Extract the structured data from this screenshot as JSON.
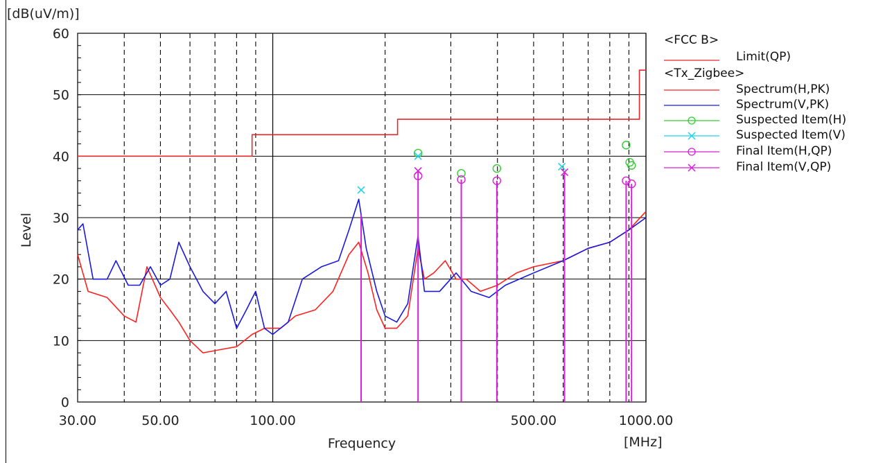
{
  "chart_data": {
    "type": "line",
    "title": "",
    "xlabel": "Frequency",
    "ylabel": "Level",
    "yunit": "[dB(uV/m)]",
    "xunit": "[MHz]",
    "xscale": "log",
    "xlim": [
      30,
      1000
    ],
    "ylim": [
      0,
      60
    ],
    "grid": true,
    "legend_position": "right",
    "x_tick_labels": [
      {
        "value": 30,
        "label": "30.00"
      },
      {
        "value": 50,
        "label": "50.00"
      },
      {
        "value": 100,
        "label": "100.00"
      },
      {
        "value": 500,
        "label": "500.00"
      },
      {
        "value": 1000,
        "label": "1000.00"
      }
    ],
    "y_ticks": [
      0,
      10,
      20,
      30,
      40,
      50,
      60
    ],
    "legend": {
      "group1": "<FCC B>",
      "limit": "Limit(QP)",
      "group2": "<Tx_Zigbee>",
      "spec_h": "Spectrum(H,PK)",
      "spec_v": "Spectrum(V,PK)",
      "susp_h": "Suspected Item(H)",
      "susp_v": "Suspected Item(V)",
      "final_h": "Final Item(H,QP)",
      "final_v": "Final Item(V,QP)"
    },
    "colors": {
      "limit": "#e8262a",
      "spec_h": "#ff2020",
      "spec_v": "#1818e0",
      "susp_h": "#33cc33",
      "susp_v": "#22d3ee",
      "final": "#d61fd6"
    },
    "limit_qp": [
      {
        "x": 30,
        "y": 40
      },
      {
        "x": 88,
        "y": 40
      },
      {
        "x": 88,
        "y": 43.5
      },
      {
        "x": 216,
        "y": 43.5
      },
      {
        "x": 216,
        "y": 46
      },
      {
        "x": 960,
        "y": 46
      },
      {
        "x": 960,
        "y": 54
      },
      {
        "x": 1000,
        "y": 54
      }
    ],
    "spectrum_h_pk": [
      {
        "x": 30,
        "y": 24
      },
      {
        "x": 32,
        "y": 18
      },
      {
        "x": 36,
        "y": 17
      },
      {
        "x": 40,
        "y": 14
      },
      {
        "x": 43,
        "y": 13
      },
      {
        "x": 46,
        "y": 22
      },
      {
        "x": 50,
        "y": 17
      },
      {
        "x": 53,
        "y": 15
      },
      {
        "x": 56,
        "y": 13
      },
      {
        "x": 60,
        "y": 10
      },
      {
        "x": 65,
        "y": 8
      },
      {
        "x": 72,
        "y": 8.5
      },
      {
        "x": 80,
        "y": 9
      },
      {
        "x": 88,
        "y": 11
      },
      {
        "x": 95,
        "y": 12
      },
      {
        "x": 105,
        "y": 12
      },
      {
        "x": 115,
        "y": 14
      },
      {
        "x": 130,
        "y": 15
      },
      {
        "x": 145,
        "y": 18
      },
      {
        "x": 160,
        "y": 24
      },
      {
        "x": 170,
        "y": 26
      },
      {
        "x": 180,
        "y": 21
      },
      {
        "x": 190,
        "y": 15
      },
      {
        "x": 200,
        "y": 12
      },
      {
        "x": 215,
        "y": 12
      },
      {
        "x": 230,
        "y": 14
      },
      {
        "x": 245,
        "y": 25
      },
      {
        "x": 255,
        "y": 20
      },
      {
        "x": 270,
        "y": 21
      },
      {
        "x": 290,
        "y": 23
      },
      {
        "x": 310,
        "y": 20
      },
      {
        "x": 330,
        "y": 20
      },
      {
        "x": 360,
        "y": 18
      },
      {
        "x": 400,
        "y": 19
      },
      {
        "x": 450,
        "y": 21
      },
      {
        "x": 500,
        "y": 22
      },
      {
        "x": 600,
        "y": 23
      },
      {
        "x": 700,
        "y": 25
      },
      {
        "x": 800,
        "y": 26
      },
      {
        "x": 900,
        "y": 28
      },
      {
        "x": 1000,
        "y": 31
      }
    ],
    "spectrum_v_pk": [
      {
        "x": 30,
        "y": 28
      },
      {
        "x": 31,
        "y": 29
      },
      {
        "x": 33,
        "y": 20
      },
      {
        "x": 36,
        "y": 20
      },
      {
        "x": 38,
        "y": 23
      },
      {
        "x": 41,
        "y": 19
      },
      {
        "x": 44,
        "y": 19
      },
      {
        "x": 47,
        "y": 22
      },
      {
        "x": 50,
        "y": 19
      },
      {
        "x": 53,
        "y": 20
      },
      {
        "x": 56,
        "y": 26
      },
      {
        "x": 60,
        "y": 22
      },
      {
        "x": 65,
        "y": 18
      },
      {
        "x": 70,
        "y": 16
      },
      {
        "x": 75,
        "y": 18
      },
      {
        "x": 80,
        "y": 12
      },
      {
        "x": 85,
        "y": 15
      },
      {
        "x": 90,
        "y": 18
      },
      {
        "x": 95,
        "y": 12
      },
      {
        "x": 100,
        "y": 11
      },
      {
        "x": 110,
        "y": 13
      },
      {
        "x": 120,
        "y": 20
      },
      {
        "x": 135,
        "y": 22
      },
      {
        "x": 150,
        "y": 23
      },
      {
        "x": 160,
        "y": 28
      },
      {
        "x": 170,
        "y": 33
      },
      {
        "x": 178,
        "y": 25
      },
      {
        "x": 190,
        "y": 18
      },
      {
        "x": 200,
        "y": 14
      },
      {
        "x": 215,
        "y": 13
      },
      {
        "x": 230,
        "y": 16
      },
      {
        "x": 245,
        "y": 27
      },
      {
        "x": 255,
        "y": 18
      },
      {
        "x": 280,
        "y": 18
      },
      {
        "x": 310,
        "y": 21
      },
      {
        "x": 340,
        "y": 18
      },
      {
        "x": 380,
        "y": 17
      },
      {
        "x": 420,
        "y": 19
      },
      {
        "x": 500,
        "y": 21
      },
      {
        "x": 600,
        "y": 23
      },
      {
        "x": 700,
        "y": 25
      },
      {
        "x": 800,
        "y": 26
      },
      {
        "x": 900,
        "y": 28
      },
      {
        "x": 1000,
        "y": 30
      }
    ],
    "suspected_h": [
      {
        "x": 245.1,
        "y": 40.5
      },
      {
        "x": 320.0,
        "y": 37.2
      },
      {
        "x": 398.5,
        "y": 38.0
      },
      {
        "x": 885.0,
        "y": 41.8
      },
      {
        "x": 905.0,
        "y": 39.0
      },
      {
        "x": 915.0,
        "y": 38.5
      }
    ],
    "suspected_v": [
      {
        "x": 172.5,
        "y": 34.5
      },
      {
        "x": 245.1,
        "y": 40.0
      },
      {
        "x": 595.0,
        "y": 38.3
      }
    ],
    "final_h_qp": [
      {
        "x": 245.1,
        "y": 36.8
      },
      {
        "x": 320.0,
        "y": 36.2
      },
      {
        "x": 398.5,
        "y": 36.0
      },
      {
        "x": 885.0,
        "y": 36.0
      },
      {
        "x": 915.0,
        "y": 35.5
      }
    ],
    "final_v_qp": [
      {
        "x": 245.1,
        "y": 37.6
      },
      {
        "x": 605.0,
        "y": 37.4
      }
    ],
    "final_stems": [
      {
        "x": 172.5,
        "y": 30.5
      },
      {
        "x": 245.1,
        "y": 37.6
      },
      {
        "x": 320.0,
        "y": 36.2
      },
      {
        "x": 398.5,
        "y": 36.0
      },
      {
        "x": 605.0,
        "y": 37.4
      },
      {
        "x": 885.0,
        "y": 36.0
      },
      {
        "x": 915.0,
        "y": 35.5
      }
    ]
  }
}
